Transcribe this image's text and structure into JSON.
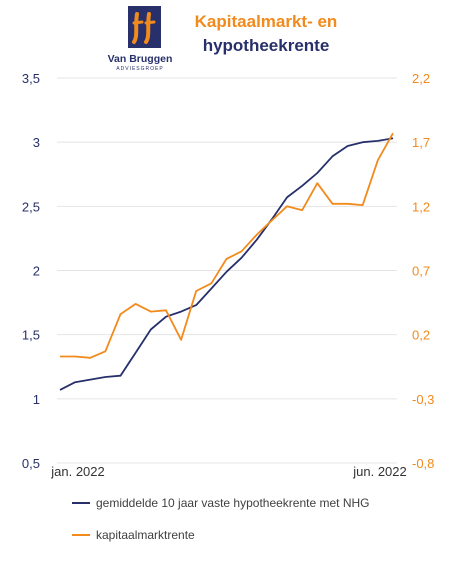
{
  "header": {
    "title_line1": "Kapitaalmarkt- en",
    "title_line2": "hypotheekrente",
    "logo_name": "Van Bruggen",
    "logo_sub": "ADVIESGROEP"
  },
  "colors": {
    "series1": "#27306b",
    "series2": "#f28a1c",
    "title_line1": "#f28a1c",
    "title_line2": "#27306b",
    "axis_left": "#27306b",
    "axis_right": "#f28a1c",
    "grid": "#e4e4e4"
  },
  "chart_data": {
    "type": "line",
    "title": "Kapitaalmarkt- en hypotheekrente",
    "x_tick_labels": [
      "jan. 2022",
      "jun. 2022"
    ],
    "y_left": {
      "ylim": [
        0.5,
        3.5
      ],
      "ticks": [
        "0,5",
        "1",
        "1,5",
        "2",
        "2,5",
        "3",
        "3,5"
      ]
    },
    "y_right": {
      "ylim": [
        -0.8,
        2.2
      ],
      "ticks": [
        "-0,8",
        "-0,3",
        "0,2",
        "0,7",
        "1,2",
        "1,7",
        "2,2"
      ]
    },
    "grid": true,
    "legend_position": "bottom",
    "series": [
      {
        "name": "gemiddelde 10 jaar vaste hypotheekrente met NHG",
        "axis": "left",
        "values": [
          1.07,
          1.13,
          1.15,
          1.17,
          1.18,
          1.36,
          1.54,
          1.64,
          1.68,
          1.73,
          1.86,
          1.99,
          2.1,
          2.24,
          2.4,
          2.57,
          2.66,
          2.76,
          2.89,
          2.97,
          3.0,
          3.01,
          3.03
        ]
      },
      {
        "name": "kapitaalmarktrente",
        "axis": "right",
        "values": [
          0.03,
          0.03,
          0.02,
          0.07,
          0.36,
          0.44,
          0.38,
          0.39,
          0.16,
          0.54,
          0.6,
          0.79,
          0.85,
          0.98,
          1.09,
          1.2,
          1.17,
          1.38,
          1.22,
          1.22,
          1.21,
          1.56,
          1.77
        ]
      }
    ]
  }
}
